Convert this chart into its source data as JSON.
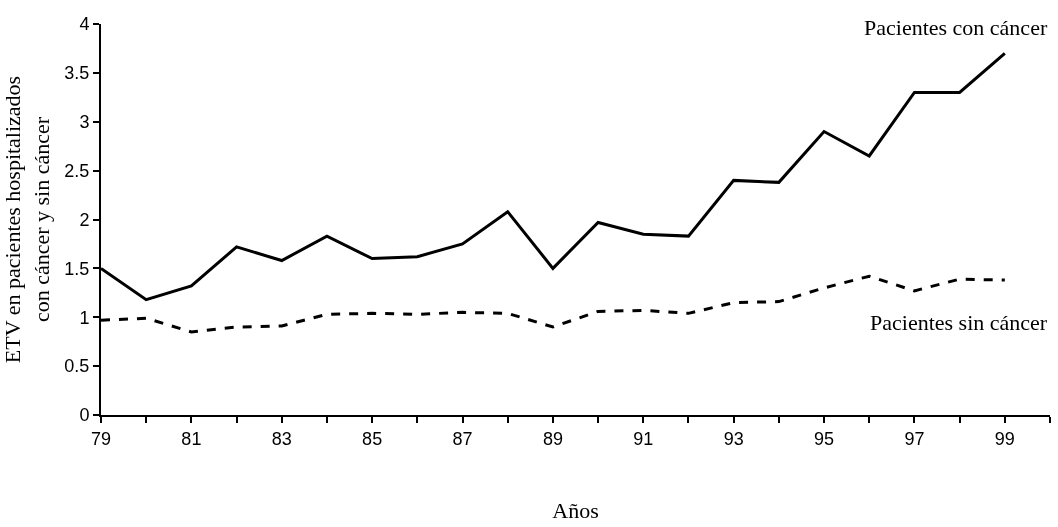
{
  "chart_data": {
    "type": "line",
    "xlabel": "Años",
    "ylabel": "ETV en pacientes hospitalizados\ncon cáncer y sin cáncer",
    "x": [
      79,
      80,
      81,
      82,
      83,
      84,
      85,
      86,
      87,
      88,
      89,
      90,
      91,
      92,
      93,
      94,
      95,
      96,
      97,
      98,
      99
    ],
    "series": [
      {
        "name": "Pacientes con cáncer",
        "color": "#000000",
        "line_style": "solid",
        "values": [
          1.5,
          1.18,
          1.32,
          1.72,
          1.58,
          1.83,
          1.6,
          1.62,
          1.75,
          2.08,
          1.5,
          1.97,
          1.85,
          1.83,
          2.4,
          2.38,
          2.9,
          2.65,
          3.3,
          3.3,
          3.7
        ]
      },
      {
        "name": "Pacientes sin cáncer",
        "color": "#000000",
        "line_style": "dashed",
        "values": [
          0.97,
          0.99,
          0.85,
          0.9,
          0.91,
          1.03,
          1.04,
          1.03,
          1.05,
          1.04,
          0.9,
          1.06,
          1.07,
          1.04,
          1.15,
          1.16,
          1.3,
          1.42,
          1.27,
          1.39,
          1.38
        ]
      }
    ],
    "xlim": [
      79,
      100
    ],
    "xticks": [
      79,
      {
        "value": 80,
        "label": null
      },
      81,
      {
        "value": 82,
        "label": null
      },
      83,
      {
        "value": 84,
        "label": null
      },
      85,
      {
        "value": 86,
        "label": null
      },
      87,
      {
        "value": 88,
        "label": null
      },
      89,
      {
        "value": 90,
        "label": null
      },
      91,
      {
        "value": 92,
        "label": null
      },
      93,
      {
        "value": 94,
        "label": null
      },
      95,
      {
        "value": 96,
        "label": null
      },
      97,
      {
        "value": 98,
        "label": null
      },
      99,
      {
        "value": 100,
        "label": null
      }
    ],
    "ylim": [
      0,
      4
    ],
    "yticks": [
      0,
      0.5,
      1,
      1.5,
      2,
      2.5,
      3,
      3.5,
      4
    ],
    "legend": false,
    "marker": "none"
  }
}
